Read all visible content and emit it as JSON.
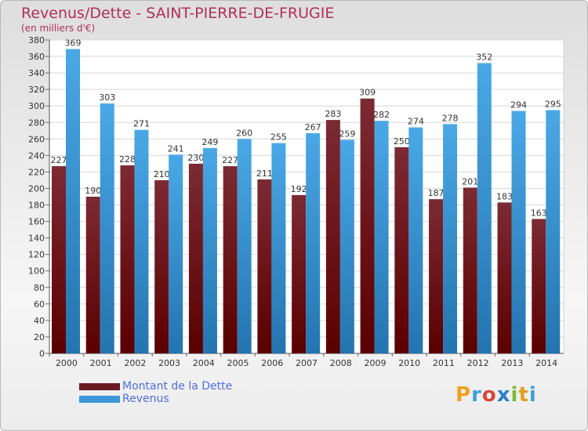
{
  "colors": {
    "dette_top": "#7c2a33",
    "dette_bottom": "#5a0000",
    "revenus_top": "#4aa8e6",
    "revenus_bottom": "#2474b0",
    "title": "#b0305a",
    "legend_text": "#4d6fe0"
  },
  "legend": [
    {
      "label": "Montant de la Dette",
      "color": "#6b1a22"
    },
    {
      "label": "Revenus",
      "color": "#3c97d8"
    }
  ],
  "logo": {
    "letters": [
      "P",
      "r",
      "o",
      "x",
      "i",
      "t",
      "i"
    ],
    "colors": [
      "#f0a020",
      "#3aa0d8",
      "#d8463a",
      "#2c7fc8",
      "#7fb83a",
      "#e0a020",
      "#3aa0d8"
    ]
  },
  "chart_data": {
    "type": "bar",
    "title": "Revenus/Dette - SAINT-PIERRE-DE-FRUGIE",
    "subtitle": "(en milliers d'€)",
    "categories": [
      "2000",
      "2001",
      "2002",
      "2003",
      "2004",
      "2005",
      "2006",
      "2007",
      "2008",
      "2009",
      "2010",
      "2011",
      "2012",
      "2013",
      "2014"
    ],
    "series": [
      {
        "name": "Montant de la Dette",
        "values": [
          227,
          190,
          228,
          210,
          230,
          227,
          211,
          192,
          283,
          309,
          250,
          187,
          201,
          183,
          163
        ]
      },
      {
        "name": "Revenus",
        "values": [
          369,
          303,
          271,
          241,
          249,
          260,
          255,
          267,
          259,
          282,
          274,
          278,
          352,
          294,
          295
        ]
      }
    ],
    "ylim": [
      0,
      380
    ],
    "yticks": [
      0,
      20,
      40,
      60,
      80,
      100,
      120,
      140,
      160,
      180,
      200,
      220,
      240,
      260,
      280,
      300,
      320,
      340,
      360,
      380
    ],
    "grid": true,
    "legend_position": "bottom-left"
  }
}
